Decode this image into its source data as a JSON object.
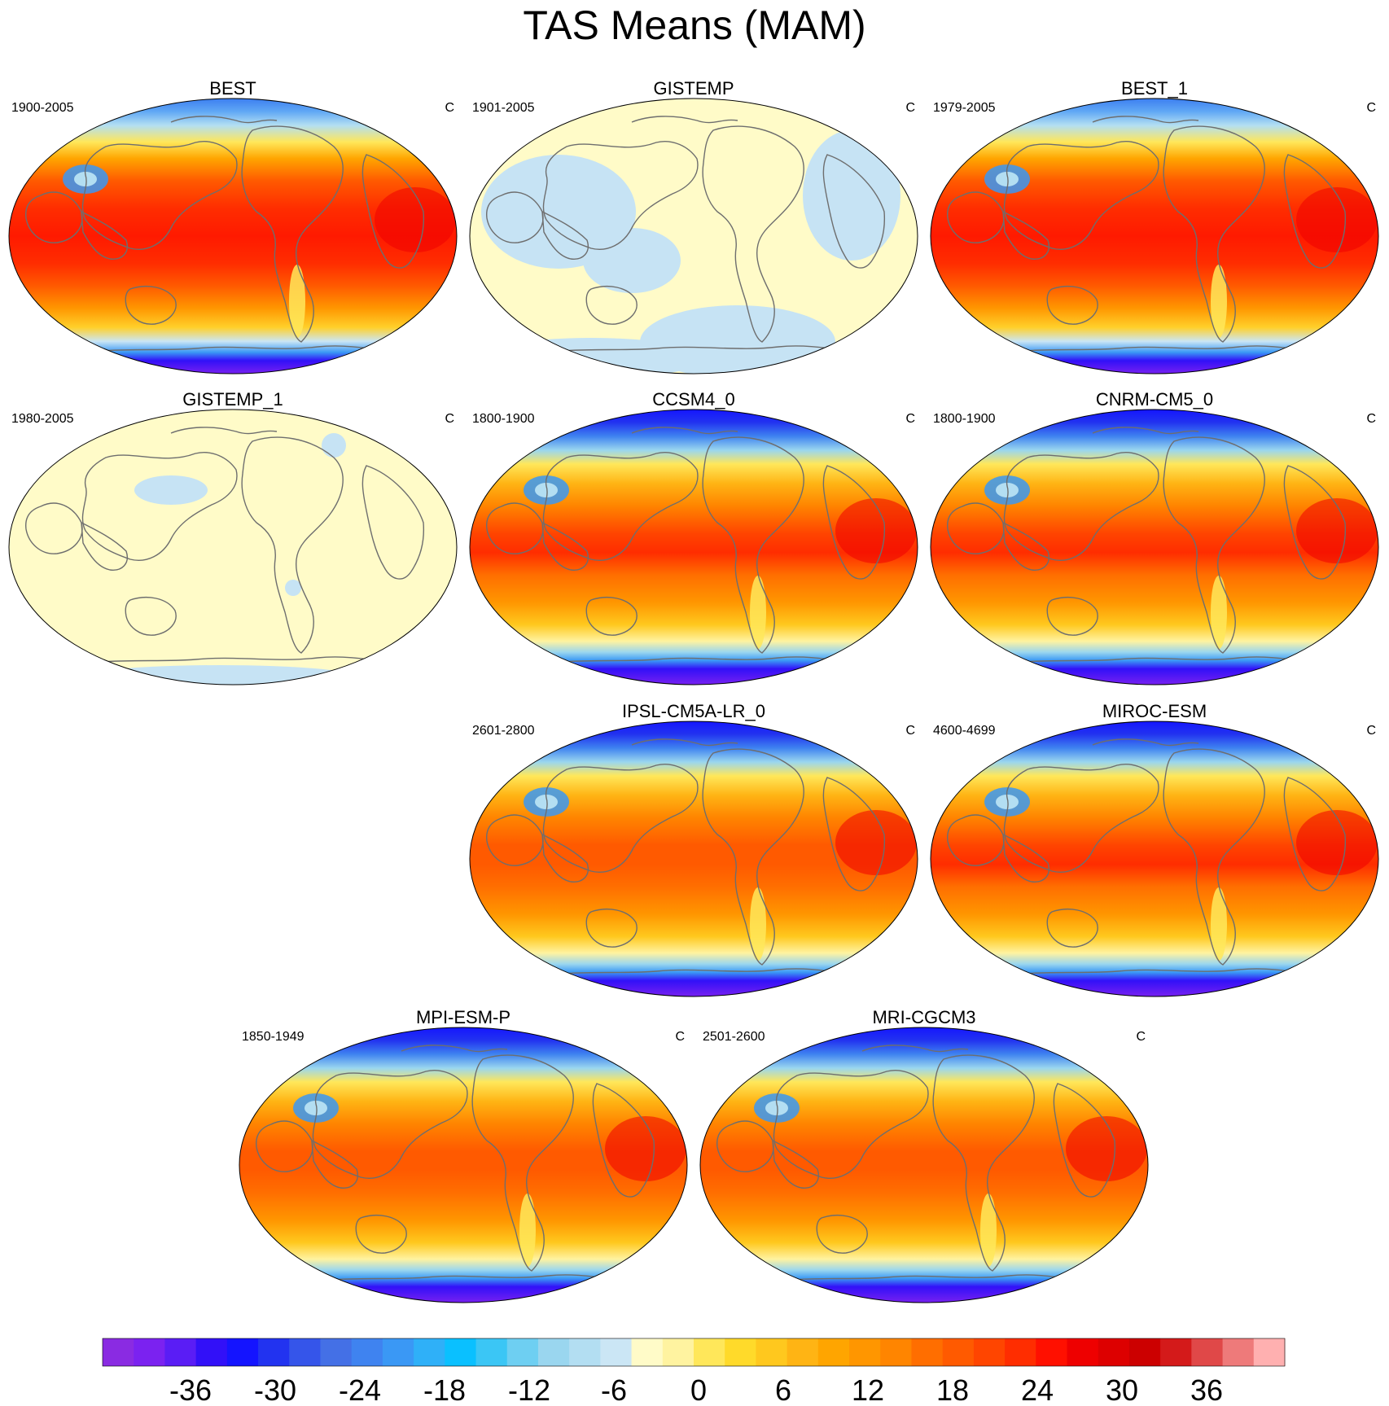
{
  "title": "TAS Means (MAM)",
  "unit": "C",
  "panels": [
    {
      "name": "BEST",
      "period": "1900-2005",
      "style": "obs"
    },
    {
      "name": "GISTEMP",
      "period": "1901-2005",
      "style": "anom_a"
    },
    {
      "name": "BEST_1",
      "period": "1979-2005",
      "style": "obs"
    },
    {
      "name": "GISTEMP_1",
      "period": "1980-2005",
      "style": "anom_b"
    },
    {
      "name": "CCSM4_0",
      "period": "1800-1900",
      "style": "model"
    },
    {
      "name": "CNRM-CM5_0",
      "period": "1800-1900",
      "style": "model"
    },
    {
      "name": "IPSL-CM5A-LR_0",
      "period": "2601-2800",
      "style": "model_warm"
    },
    {
      "name": "MIROC-ESM",
      "period": "4600-4699",
      "style": "model"
    },
    {
      "name": "MPI-ESM-P",
      "period": "1850-1949",
      "style": "model_warm"
    },
    {
      "name": "MRI-CGCM3",
      "period": "2501-2600",
      "style": "model_warm"
    }
  ],
  "colorbar": {
    "labels": [
      "-36",
      "-30",
      "-24",
      "-18",
      "-12",
      "-6",
      "0",
      "6",
      "12",
      "18",
      "24",
      "30",
      "36"
    ],
    "colors": [
      "#8a2be2",
      "#7b22f0",
      "#5a1df5",
      "#3210f8",
      "#1414ff",
      "#2233f0",
      "#3555ea",
      "#4470e6",
      "#3f83f0",
      "#3a98f5",
      "#2fb0f8",
      "#0ac0ff",
      "#3bc6f5",
      "#6ecff2",
      "#9ad6ef",
      "#b3def2",
      "#cbe6f5",
      "#fffbc8",
      "#fff3a0",
      "#ffe75a",
      "#ffda2a",
      "#ffc81e",
      "#ffb414",
      "#ffa500",
      "#ff9600",
      "#ff8500",
      "#ff6e00",
      "#ff5a00",
      "#ff4500",
      "#ff2d00",
      "#ff1000",
      "#ee0000",
      "#dd0000",
      "#cc0000",
      "#d41a1a",
      "#e04848",
      "#ee7a7a",
      "#ffb0b0"
    ]
  }
}
